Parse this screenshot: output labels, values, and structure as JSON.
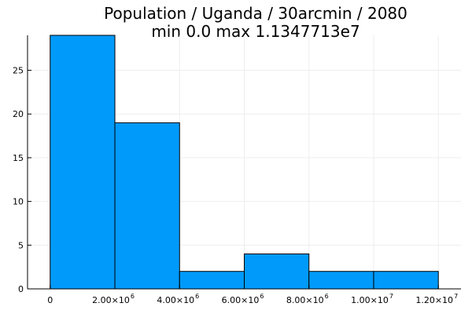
{
  "chart_data": {
    "type": "bar",
    "title": "Population / Uganda / 30arcmin / 2080",
    "subtitle": "min 0.0  max 1.1347713e7",
    "xlabel": "",
    "ylabel": "",
    "bins": [
      {
        "x0": 0,
        "x1": 2000000,
        "count": 29
      },
      {
        "x0": 2000000,
        "x1": 4000000,
        "count": 19
      },
      {
        "x0": 4000000,
        "x1": 6000000,
        "count": 2
      },
      {
        "x0": 6000000,
        "x1": 8000000,
        "count": 4
      },
      {
        "x0": 8000000,
        "x1": 10000000,
        "count": 2
      },
      {
        "x0": 10000000,
        "x1": 12000000,
        "count": 2
      }
    ],
    "xlim": [
      -700000,
      12700000
    ],
    "ylim": [
      0,
      29
    ],
    "x_ticks": [
      {
        "value": 0,
        "mantissa": "0",
        "exp": ""
      },
      {
        "value": 2000000,
        "mantissa": "2.00×10",
        "exp": "6"
      },
      {
        "value": 4000000,
        "mantissa": "4.00×10",
        "exp": "6"
      },
      {
        "value": 6000000,
        "mantissa": "6.00×10",
        "exp": "6"
      },
      {
        "value": 8000000,
        "mantissa": "8.00×10",
        "exp": "6"
      },
      {
        "value": 10000000,
        "mantissa": "1.00×10",
        "exp": "7"
      },
      {
        "value": 12000000,
        "mantissa": "1.20×10",
        "exp": "7"
      }
    ],
    "y_ticks": [
      "0",
      "5",
      "10",
      "15",
      "20",
      "25"
    ],
    "grid": true,
    "legend": "none",
    "colors": {
      "bar_fill": "#009AFA",
      "bar_stroke": "#000000",
      "grid": "#EEEEEE"
    }
  }
}
